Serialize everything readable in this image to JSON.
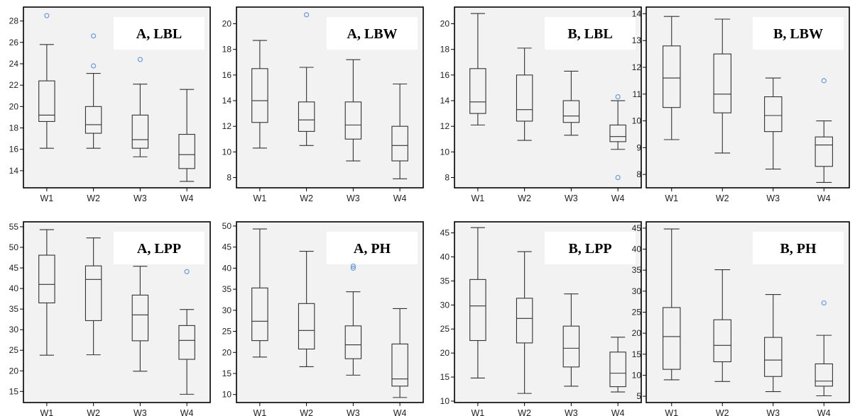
{
  "chart_data": [
    {
      "type": "boxplot",
      "title": "A, LBL",
      "categories": [
        "W1",
        "W2",
        "W3",
        "W4"
      ],
      "yticks": [
        14,
        16,
        18,
        20,
        22,
        24,
        26,
        28
      ],
      "ylim": [
        12.4,
        29.3
      ],
      "title_position": "top-right",
      "boxes": [
        {
          "whisker_low": 16.1,
          "q1": 18.6,
          "median": 19.2,
          "q3": 22.4,
          "whisker_high": 25.8
        },
        {
          "whisker_low": 16.1,
          "q1": 17.5,
          "median": 18.3,
          "q3": 20.0,
          "whisker_high": 23.1
        },
        {
          "whisker_low": 15.3,
          "q1": 16.1,
          "median": 16.9,
          "q3": 19.2,
          "whisker_high": 22.1
        },
        {
          "whisker_low": 13.0,
          "q1": 14.2,
          "median": 15.5,
          "q3": 17.4,
          "whisker_high": 21.6
        }
      ],
      "outliers": [
        {
          "category": "W1",
          "value": 28.5
        },
        {
          "category": "W2",
          "value": 26.6
        },
        {
          "category": "W2",
          "value": 23.8
        },
        {
          "category": "W3",
          "value": 24.4
        }
      ]
    },
    {
      "type": "boxplot",
      "title": "A, LBW",
      "categories": [
        "W1",
        "W2",
        "W3",
        "W4"
      ],
      "yticks": [
        8,
        10,
        12,
        14,
        16,
        18,
        20
      ],
      "ylim": [
        7.2,
        21.3
      ],
      "title_position": "top-right",
      "boxes": [
        {
          "whisker_low": 10.3,
          "q1": 12.3,
          "median": 14.0,
          "q3": 16.5,
          "whisker_high": 18.7
        },
        {
          "whisker_low": 10.5,
          "q1": 11.6,
          "median": 12.5,
          "q3": 13.9,
          "whisker_high": 16.6
        },
        {
          "whisker_low": 9.3,
          "q1": 11.0,
          "median": 12.1,
          "q3": 13.9,
          "whisker_high": 17.2
        },
        {
          "whisker_low": 7.9,
          "q1": 9.3,
          "median": 10.5,
          "q3": 12.0,
          "whisker_high": 15.3
        }
      ],
      "outliers": [
        {
          "category": "W2",
          "value": 20.7
        }
      ]
    },
    {
      "type": "boxplot",
      "title": "B, LBL",
      "categories": [
        "W1",
        "W2",
        "W3",
        "W4"
      ],
      "yticks": [
        8,
        10,
        12,
        14,
        16,
        18,
        20
      ],
      "ylim": [
        7.2,
        21.3
      ],
      "title_position": "top-right",
      "boxes": [
        {
          "whisker_low": 12.1,
          "q1": 13.0,
          "median": 13.9,
          "q3": 16.5,
          "whisker_high": 20.8
        },
        {
          "whisker_low": 10.9,
          "q1": 12.4,
          "median": 13.3,
          "q3": 16.0,
          "whisker_high": 18.1
        },
        {
          "whisker_low": 11.3,
          "q1": 12.3,
          "median": 12.8,
          "q3": 14.0,
          "whisker_high": 16.3
        },
        {
          "whisker_low": 10.2,
          "q1": 10.8,
          "median": 11.2,
          "q3": 12.1,
          "whisker_high": 14.0
        }
      ],
      "outliers": [
        {
          "category": "W4",
          "value": 14.3
        },
        {
          "category": "W4",
          "value": 8.0
        }
      ]
    },
    {
      "type": "boxplot",
      "title": "B, LBW",
      "categories": [
        "W1",
        "W2",
        "W3",
        "W4"
      ],
      "yticks": [
        8,
        9,
        10,
        11,
        12,
        13,
        14
      ],
      "ylim": [
        7.5,
        14.25
      ],
      "title_position": "top-right",
      "boxes": [
        {
          "whisker_low": 9.3,
          "q1": 10.5,
          "median": 11.6,
          "q3": 12.8,
          "whisker_high": 13.9
        },
        {
          "whisker_low": 8.8,
          "q1": 10.3,
          "median": 11.0,
          "q3": 12.5,
          "whisker_high": 13.8
        },
        {
          "whisker_low": 8.2,
          "q1": 9.6,
          "median": 10.2,
          "q3": 10.9,
          "whisker_high": 11.6
        },
        {
          "whisker_low": 7.7,
          "q1": 8.3,
          "median": 9.1,
          "q3": 9.4,
          "whisker_high": 10.0
        }
      ],
      "outliers": [
        {
          "category": "W4",
          "value": 11.5
        }
      ]
    },
    {
      "type": "boxplot",
      "title": "A, LPP",
      "categories": [
        "W1",
        "W2",
        "W3",
        "W4"
      ],
      "yticks": [
        15,
        20,
        25,
        30,
        35,
        40,
        45,
        50,
        55
      ],
      "ylim": [
        12.3,
        56.2
      ],
      "title_position": "top-right",
      "boxes": [
        {
          "whisker_low": 23.8,
          "q1": 36.5,
          "median": 41.0,
          "q3": 48.1,
          "whisker_high": 54.3
        },
        {
          "whisker_low": 23.9,
          "q1": 32.2,
          "median": 42.2,
          "q3": 45.5,
          "whisker_high": 52.3
        },
        {
          "whisker_low": 19.9,
          "q1": 27.3,
          "median": 33.6,
          "q3": 38.4,
          "whisker_high": 45.4
        },
        {
          "whisker_low": 14.3,
          "q1": 22.8,
          "median": 27.4,
          "q3": 31.0,
          "whisker_high": 34.9
        }
      ],
      "outliers": [
        {
          "category": "W4",
          "value": 44.1
        }
      ]
    },
    {
      "type": "boxplot",
      "title": "A, PH",
      "categories": [
        "W1",
        "W2",
        "W3",
        "W4"
      ],
      "yticks": [
        10,
        15,
        20,
        25,
        30,
        35,
        40,
        45,
        50
      ],
      "ylim": [
        8.1,
        51.0
      ],
      "title_position": "top-right",
      "boxes": [
        {
          "whisker_low": 18.9,
          "q1": 22.8,
          "median": 27.4,
          "q3": 35.3,
          "whisker_high": 49.3
        },
        {
          "whisker_low": 16.6,
          "q1": 20.8,
          "median": 25.2,
          "q3": 31.6,
          "whisker_high": 44.0
        },
        {
          "whisker_low": 14.6,
          "q1": 18.5,
          "median": 21.8,
          "q3": 26.3,
          "whisker_high": 34.4
        },
        {
          "whisker_low": 9.3,
          "q1": 12.0,
          "median": 13.7,
          "q3": 22.0,
          "whisker_high": 30.4
        }
      ],
      "outliers": [
        {
          "category": "W3",
          "value": 40.5
        },
        {
          "category": "W3",
          "value": 40.0
        }
      ]
    },
    {
      "type": "boxplot",
      "title": "B, LPP",
      "categories": [
        "W1",
        "W2",
        "W3",
        "W4"
      ],
      "yticks": [
        10,
        15,
        20,
        25,
        30,
        35,
        40,
        45
      ],
      "ylim": [
        9.7,
        47.3
      ],
      "title_position": "top-right",
      "boxes": [
        {
          "whisker_low": 14.8,
          "q1": 22.6,
          "median": 29.8,
          "q3": 35.3,
          "whisker_high": 46.1
        },
        {
          "whisker_low": 11.6,
          "q1": 22.1,
          "median": 27.2,
          "q3": 31.4,
          "whisker_high": 41.1
        },
        {
          "whisker_low": 13.1,
          "q1": 17.1,
          "median": 21.0,
          "q3": 25.6,
          "whisker_high": 32.3
        },
        {
          "whisker_low": 11.9,
          "q1": 13.0,
          "median": 15.8,
          "q3": 20.2,
          "whisker_high": 23.3
        }
      ],
      "outliers": []
    },
    {
      "type": "boxplot",
      "title": "B, PH",
      "categories": [
        "W1",
        "W2",
        "W3",
        "W4"
      ],
      "yticks": [
        5,
        10,
        15,
        20,
        25,
        30,
        35,
        40,
        45
      ],
      "ylim": [
        3.5,
        46.5
      ],
      "title_position": "top-right",
      "boxes": [
        {
          "whisker_low": 8.9,
          "q1": 11.4,
          "median": 19.2,
          "q3": 26.1,
          "whisker_high": 44.8
        },
        {
          "whisker_low": 8.5,
          "q1": 13.2,
          "median": 17.1,
          "q3": 23.2,
          "whisker_high": 35.1
        },
        {
          "whisker_low": 6.1,
          "q1": 9.7,
          "median": 13.6,
          "q3": 19.0,
          "whisker_high": 29.2
        },
        {
          "whisker_low": 5.1,
          "q1": 7.4,
          "median": 8.6,
          "q3": 12.7,
          "whisker_high": 19.5
        }
      ],
      "outliers": [
        {
          "category": "W4",
          "value": 27.2
        }
      ]
    }
  ],
  "colors": {
    "plot_background": "#f2f2f2",
    "title_box": "#ffffff",
    "box_stroke": "#333333",
    "outlier": "#6a9be0",
    "frame": "#000000"
  }
}
